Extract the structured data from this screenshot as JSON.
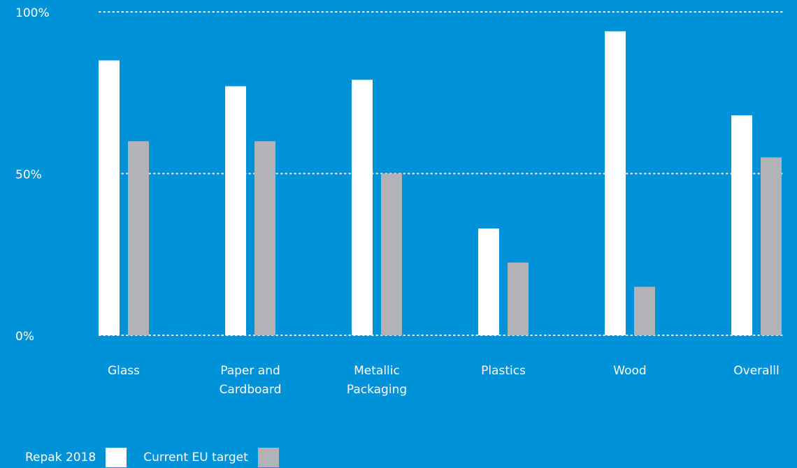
{
  "colors": {
    "background": "#0092d8",
    "series_repak": "#ffffff",
    "series_target": "#b1b3b6",
    "grid": "#ffffff"
  },
  "chart_data": {
    "type": "bar",
    "title": "",
    "xlabel": "",
    "ylabel": "",
    "ylim": [
      0,
      100
    ],
    "yticks": [
      "0%",
      "50%",
      "100%"
    ],
    "ytick_values": [
      0,
      50,
      100
    ],
    "grid": "dotted horizontal",
    "legend_placement": "bottom-left",
    "categories": [
      [
        "Glass"
      ],
      [
        "Paper and",
        "Cardboard"
      ],
      [
        "Metallic",
        "Packaging"
      ],
      [
        "Plastics"
      ],
      [
        "Wood"
      ],
      [
        "Overalll"
      ]
    ],
    "series": [
      {
        "name": "Repak 2018",
        "color": "#ffffff",
        "values": [
          85,
          77,
          79,
          33,
          94,
          68
        ]
      },
      {
        "name": "Current EU target",
        "color": "#b1b3b6",
        "values": [
          60,
          60,
          50,
          22.5,
          15,
          55
        ]
      }
    ]
  }
}
